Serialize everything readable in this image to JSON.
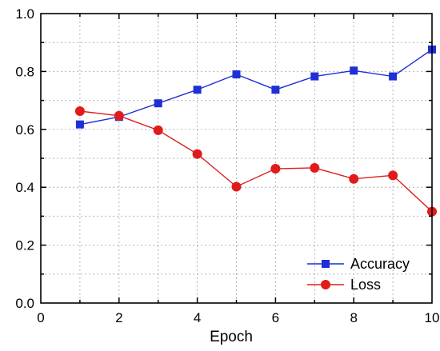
{
  "chart_data": {
    "type": "line",
    "title": "",
    "xlabel": "Epoch",
    "ylabel": "",
    "xlim": [
      0,
      10
    ],
    "ylim": [
      0,
      1.0
    ],
    "xticks": [
      0,
      2,
      4,
      6,
      8,
      10
    ],
    "xtick_labels": [
      "0",
      "2",
      "4",
      "6",
      "8",
      "10"
    ],
    "yticks": [
      0,
      0.2,
      0.4,
      0.6,
      0.8,
      1.0
    ],
    "ytick_labels": [
      "0.0",
      "0.2",
      "0.4",
      "0.6",
      "0.8",
      "1.0"
    ],
    "grid": true,
    "legend_position": "bottom-right",
    "x": [
      1,
      2,
      3,
      4,
      5,
      6,
      7,
      8,
      9,
      10
    ],
    "series": [
      {
        "name": "Accuracy",
        "values": [
          0.617,
          0.643,
          0.69,
          0.737,
          0.79,
          0.737,
          0.783,
          0.803,
          0.783,
          0.876
        ],
        "color": "#1f2fd6",
        "marker": "square"
      },
      {
        "name": "Loss",
        "values": [
          0.663,
          0.647,
          0.597,
          0.515,
          0.402,
          0.464,
          0.467,
          0.429,
          0.441,
          0.316
        ],
        "color": "#e01b1b",
        "marker": "circle"
      }
    ]
  }
}
